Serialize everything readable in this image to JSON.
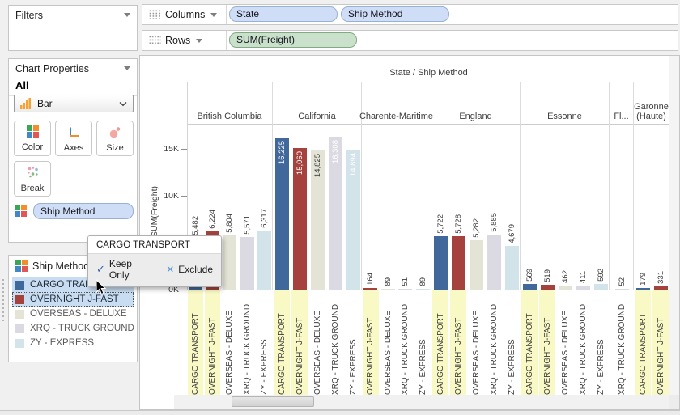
{
  "palette": {
    "CARGO TRANSPORT": "#41689b",
    "OVERNIGHT J-FAST": "#a5423e",
    "OVERSEAS - DELUXE": "#e3e4d5",
    "XRQ - TRUCK GROUND": "#dbd9e2",
    "ZY - EXPRESS": "#d3e3ea"
  },
  "colors": {
    "label_highlight": "#f9f9c5",
    "legend_highlight": "#c9ddf2",
    "dimension_pill": "#cfdef6",
    "measure_pill": "#c9e1ca"
  },
  "filters_panel": {
    "title": "Filters"
  },
  "chart_properties": {
    "title": "Chart Properties",
    "scope_label": "All",
    "chart_type": "Bar",
    "buttons": [
      "Color",
      "Axes",
      "Size",
      "Break"
    ],
    "encoding_pill": "Ship Method"
  },
  "shelves": {
    "columns_label": "Columns",
    "rows_label": "Rows",
    "column_pills": [
      "State",
      "Ship Method"
    ],
    "row_pills": [
      "SUM(Freight)"
    ]
  },
  "legend": {
    "title": "Ship Method",
    "items": [
      {
        "label": "CARGO TRANSPORT",
        "selected": true,
        "focused": false
      },
      {
        "label": "OVERNIGHT J-FAST",
        "selected": true,
        "focused": true
      },
      {
        "label": "OVERSEAS - DELUXE",
        "selected": false,
        "focused": false
      },
      {
        "label": "XRQ - TRUCK GROUND",
        "selected": false,
        "focused": false
      },
      {
        "label": "ZY - EXPRESS",
        "selected": false,
        "focused": false
      }
    ]
  },
  "tooltip": {
    "title": "CARGO TRANSPORT",
    "keep_label": "Keep Only",
    "exclude_label": "Exclude"
  },
  "chart_data": {
    "type": "bar",
    "title": "State / Ship Method",
    "ylabel": "SUM(Freight)",
    "yticks": [
      "0K",
      "5K",
      "10K",
      "15K"
    ],
    "ylim": [
      0,
      17500
    ],
    "legend_position": "left",
    "selected_methods": [
      "CARGO TRANSPORT",
      "OVERNIGHT J-FAST"
    ],
    "groups": [
      {
        "state": "British Columbia",
        "bars": [
          {
            "method": "CARGO TRANSPORT",
            "value": 5482,
            "label": "5,482",
            "label_pos": "out"
          },
          {
            "method": "OVERNIGHT J-FAST",
            "value": 6224,
            "label": "6,224",
            "label_pos": "out"
          },
          {
            "method": "OVERSEAS - DELUXE",
            "value": 5804,
            "label": "5,804",
            "label_pos": "out"
          },
          {
            "method": "XRQ - TRUCK GROUND",
            "value": 5571,
            "label": "5,571",
            "label_pos": "out"
          },
          {
            "method": "ZY - EXPRESS",
            "value": 6317,
            "label": "6,317",
            "label_pos": "out"
          }
        ]
      },
      {
        "state": "California",
        "bars": [
          {
            "method": "CARGO TRANSPORT",
            "value": 16225,
            "label": "16,225",
            "label_pos": "in",
            "label_color": "#ffffff"
          },
          {
            "method": "OVERNIGHT J-FAST",
            "value": 15060,
            "label": "15,060",
            "label_pos": "in",
            "label_color": "#ffffff"
          },
          {
            "method": "OVERSEAS - DELUXE",
            "value": 14825,
            "label": "14,825",
            "label_pos": "in",
            "label_color": "#3c3c3c"
          },
          {
            "method": "XRQ - TRUCK GROUND",
            "value": 16308,
            "label": "16,308",
            "label_pos": "in",
            "label_color": "#ffffff"
          },
          {
            "method": "ZY - EXPRESS",
            "value": 14894,
            "label": "14,894",
            "label_pos": "in",
            "label_color": "#ffffff"
          }
        ]
      },
      {
        "state": "Charente-Maritime",
        "bars": [
          {
            "method": "OVERNIGHT J-FAST",
            "value": 164,
            "label": "164",
            "label_pos": "out"
          },
          {
            "method": "OVERSEAS - DELUXE",
            "value": 89,
            "label": "89",
            "label_pos": "out"
          },
          {
            "method": "XRQ - TRUCK GROUND",
            "value": 51,
            "label": "51",
            "label_pos": "out"
          },
          {
            "method": "ZY - EXPRESS",
            "value": 89,
            "label": "89",
            "label_pos": "out"
          }
        ]
      },
      {
        "state": "England",
        "bars": [
          {
            "method": "CARGO TRANSPORT",
            "value": 5722,
            "label": "5,722",
            "label_pos": "out"
          },
          {
            "method": "OVERNIGHT J-FAST",
            "value": 5728,
            "label": "5,728",
            "label_pos": "out"
          },
          {
            "method": "OVERSEAS - DELUXE",
            "value": 5282,
            "label": "5,282",
            "label_pos": "out"
          },
          {
            "method": "XRQ - TRUCK GROUND",
            "value": 5885,
            "label": "5,885",
            "label_pos": "out"
          },
          {
            "method": "ZY - EXPRESS",
            "value": 4679,
            "label": "4,679",
            "label_pos": "out"
          }
        ]
      },
      {
        "state": "Essonne",
        "bars": [
          {
            "method": "CARGO TRANSPORT",
            "value": 569,
            "label": "569",
            "label_pos": "out"
          },
          {
            "method": "OVERNIGHT J-FAST",
            "value": 519,
            "label": "519",
            "label_pos": "out"
          },
          {
            "method": "OVERSEAS - DELUXE",
            "value": 462,
            "label": "462",
            "label_pos": "out"
          },
          {
            "method": "XRQ - TRUCK GROUND",
            "value": 411,
            "label": "411",
            "label_pos": "out"
          },
          {
            "method": "ZY - EXPRESS",
            "value": 592,
            "label": "592",
            "label_pos": "out"
          }
        ]
      },
      {
        "state": "Fl...",
        "bars": [
          {
            "method": "XRQ - TRUCK GROUND",
            "value": 52,
            "label": "52",
            "label_pos": "out"
          }
        ]
      },
      {
        "state": "Garonne (Haute)",
        "bars": [
          {
            "method": "CARGO TRANSPORT",
            "value": 179,
            "label": "179",
            "label_pos": "out"
          },
          {
            "method": "OVERNIGHT J-FAST",
            "value": 331,
            "label": "331",
            "label_pos": "out"
          }
        ]
      }
    ]
  }
}
